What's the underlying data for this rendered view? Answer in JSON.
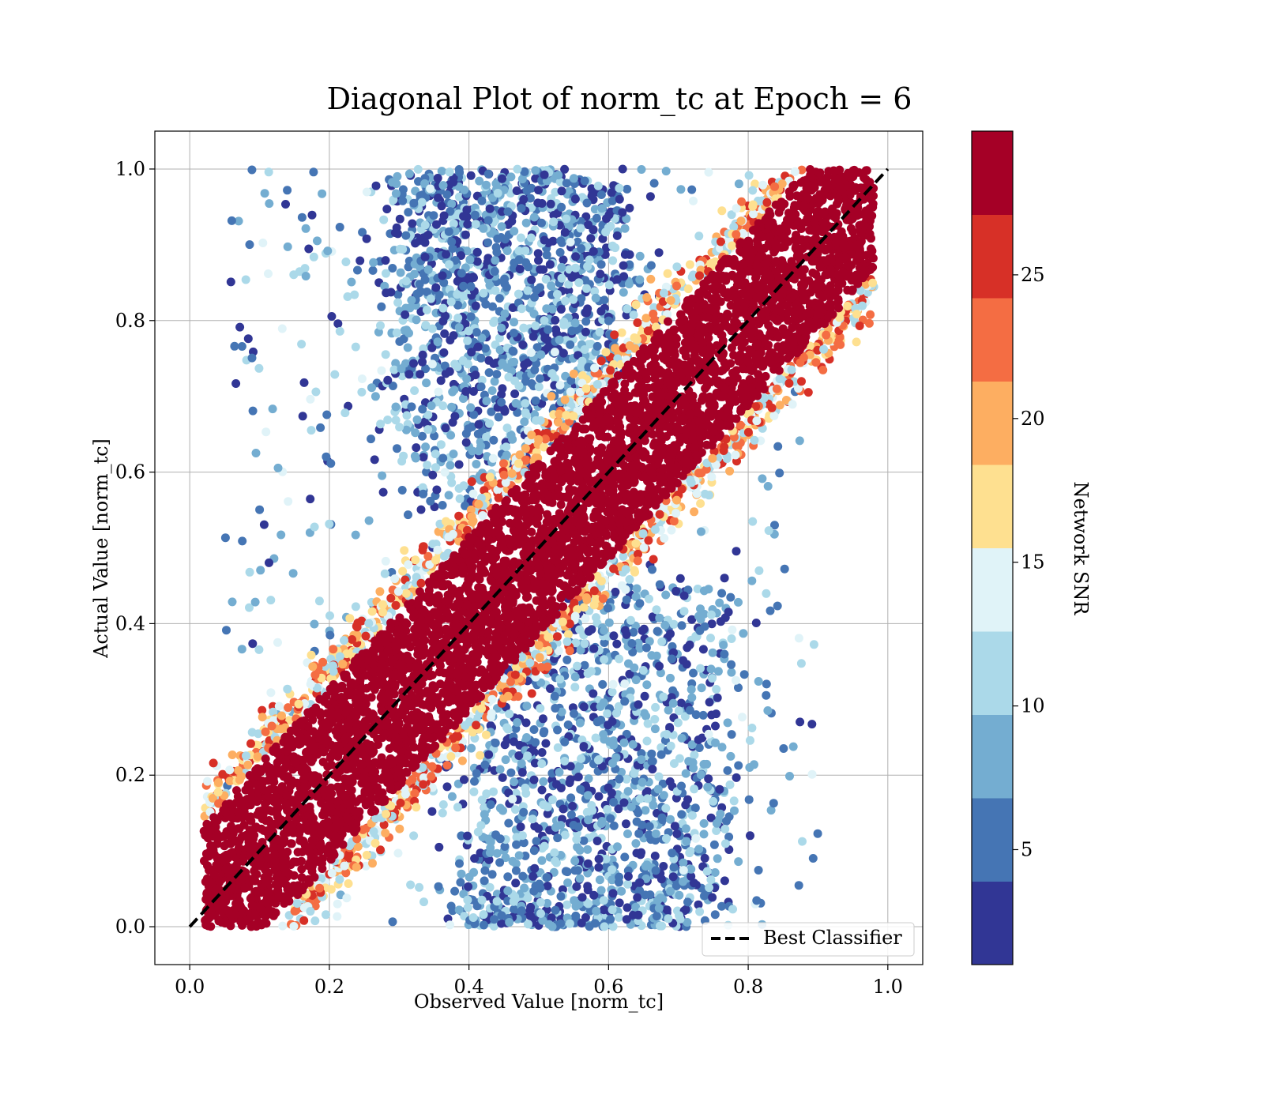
{
  "chart_data": {
    "type": "scatter",
    "title": "Diagonal Plot of norm_tc at Epoch = 6",
    "xlabel": "Observed Value [norm_tc]",
    "ylabel": "Actual Value [norm_tc]",
    "xlim": [
      -0.05,
      1.05
    ],
    "ylim": [
      -0.05,
      1.05
    ],
    "xticks": [
      "0.0",
      "0.2",
      "0.4",
      "0.6",
      "0.8",
      "1.0"
    ],
    "yticks": [
      "0.0",
      "0.2",
      "0.4",
      "0.6",
      "0.8",
      "1.0"
    ],
    "grid": true,
    "legend": {
      "position": "lower-right",
      "entries": [
        {
          "label": "Best Classifier",
          "style": "dashed",
          "color": "#000000"
        }
      ]
    },
    "reference_line": {
      "label": "Best Classifier",
      "x": [
        0.0,
        1.0
      ],
      "y": [
        0.0,
        1.0
      ]
    },
    "colorbar": {
      "label": "Network SNR",
      "range": [
        1,
        30
      ],
      "ticks": [
        "5",
        "10",
        "15",
        "20",
        "25"
      ],
      "tick_values": [
        5,
        10,
        15,
        20,
        25
      ],
      "colors": [
        "#313695",
        "#4575b4",
        "#74add1",
        "#abd9e9",
        "#e0f3f8",
        "#fee090",
        "#fdae61",
        "#f46d43",
        "#d73027",
        "#a50026"
      ]
    },
    "point_structure": {
      "band_center": "y = x",
      "high_snr_band_halfwidth": 0.12,
      "high_snr_color": "#a50026",
      "low_snr_regions": [
        {
          "x_range": [
            0.3,
            0.6
          ],
          "y_range": [
            0.6,
            1.0
          ]
        },
        {
          "x_range": [
            0.4,
            0.75
          ],
          "y_range": [
            0.0,
            0.4
          ]
        }
      ]
    }
  }
}
